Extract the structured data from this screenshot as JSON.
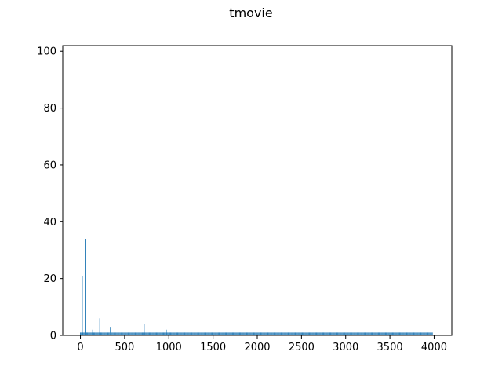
{
  "chart_data": {
    "type": "bar",
    "title": "tmovie",
    "xlabel": "",
    "ylabel": "",
    "xlim": [
      -200,
      4200
    ],
    "ylim": [
      0,
      102
    ],
    "xticks": [
      0,
      500,
      1000,
      1500,
      2000,
      2500,
      3000,
      3500,
      4000
    ],
    "yticks": [
      0,
      20,
      40,
      60,
      80,
      100
    ],
    "bar_color": "#1f77b4",
    "grid": false,
    "baseline": {
      "x_start": 0,
      "x_end": 3980,
      "step": 10,
      "value": 1
    },
    "bars": [
      {
        "x": 20,
        "value": 21
      },
      {
        "x": 60,
        "value": 34
      },
      {
        "x": 140,
        "value": 2
      },
      {
        "x": 220,
        "value": 6
      },
      {
        "x": 340,
        "value": 3
      },
      {
        "x": 720,
        "value": 4
      },
      {
        "x": 970,
        "value": 2
      }
    ]
  }
}
